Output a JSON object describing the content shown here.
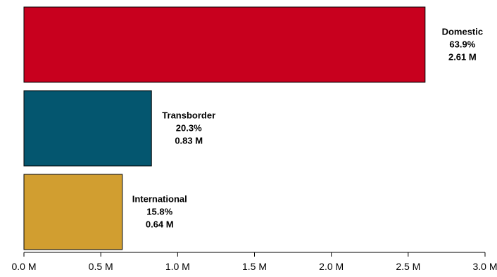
{
  "chart_data": {
    "type": "bar",
    "orientation": "horizontal",
    "title": "",
    "xlabel": "",
    "ylabel": "",
    "xlim": [
      0,
      3.0
    ],
    "grid": false,
    "legend": "none",
    "categories": [
      "Domestic",
      "Transborder",
      "International"
    ],
    "values": [
      2.61,
      0.83,
      0.64
    ],
    "percentages": [
      "63.9%",
      "20.3%",
      "15.8%"
    ],
    "value_labels": [
      "2.61 M",
      "0.83 M",
      "0.64 M"
    ],
    "colors": [
      "#C8001E",
      "#04566F",
      "#D19E30"
    ],
    "x_ticks": [
      0,
      0.5,
      1.0,
      1.5,
      2.0,
      2.5,
      3.0
    ],
    "x_tick_labels": [
      "0.0 M",
      "0.5 M",
      "1.0 M",
      "1.5 M",
      "2.0 M",
      "2.5 M",
      "3.0 M"
    ]
  }
}
